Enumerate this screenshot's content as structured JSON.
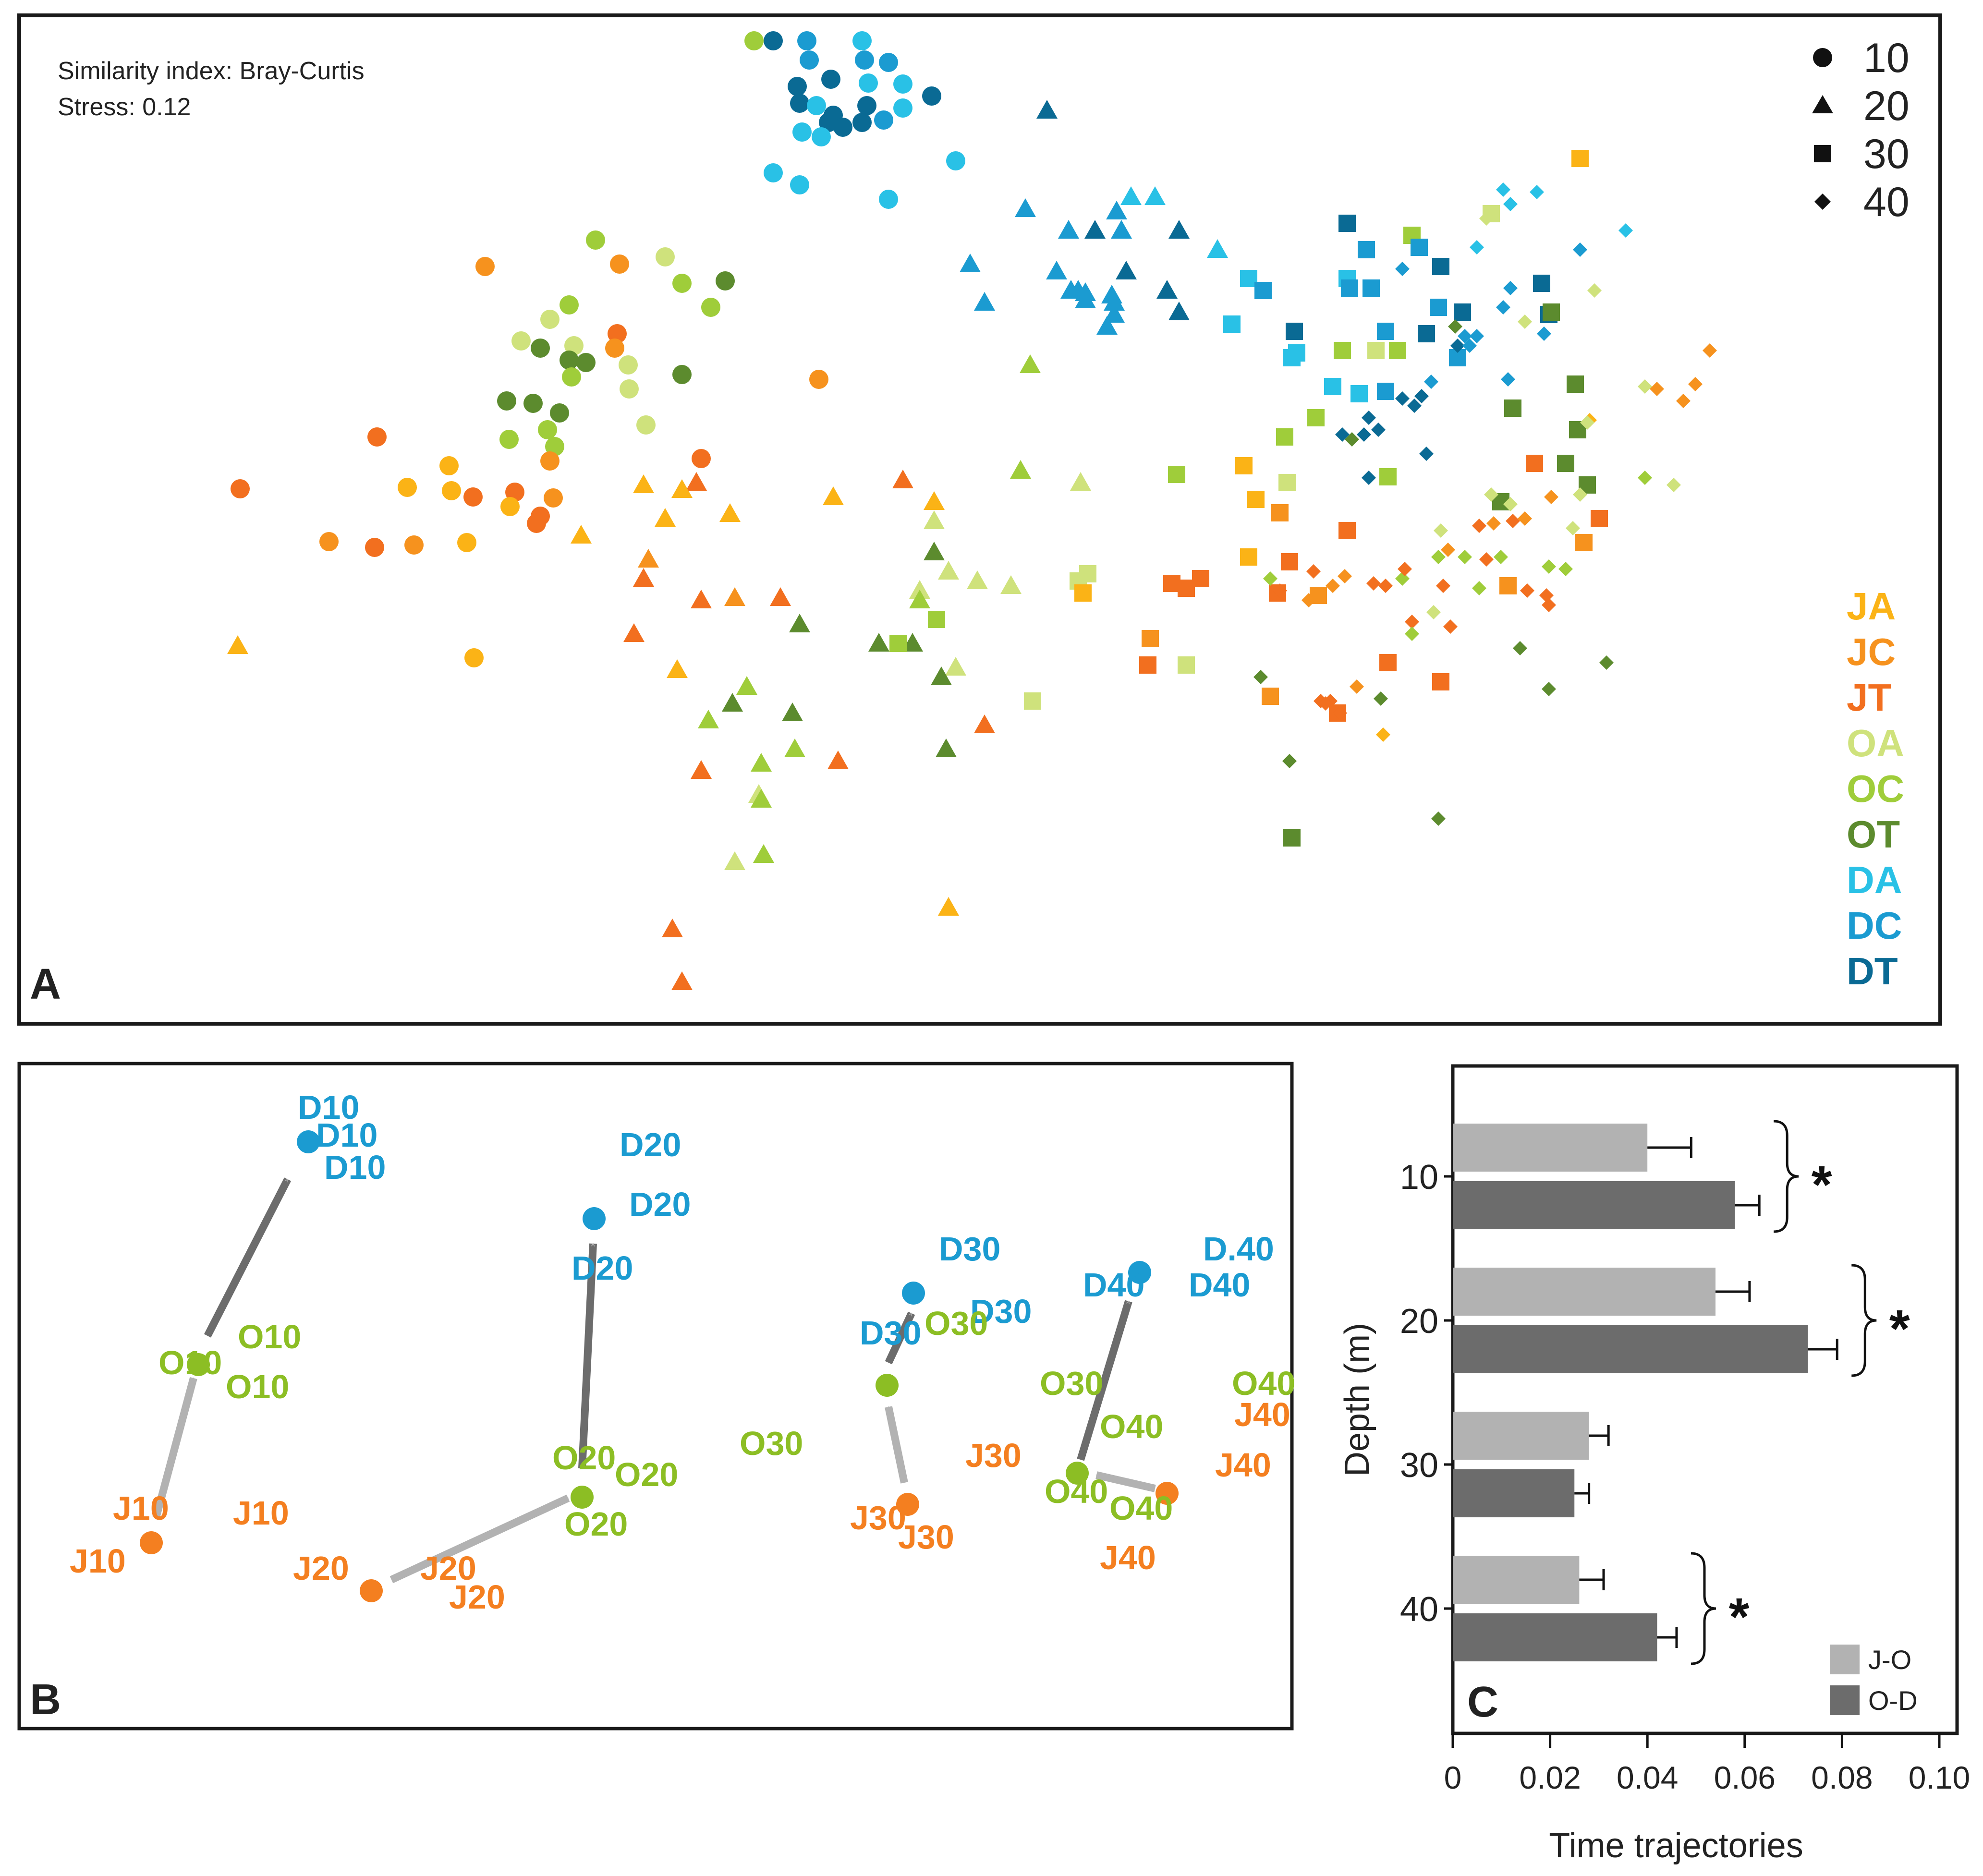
{
  "colors": {
    "JA": "#fbb316",
    "JC": "#f6921e",
    "JT": "#f26f1f",
    "OA": "#cfe27c",
    "OC": "#9fcd3a",
    "OT": "#5c8b2e",
    "DA": "#29c1e6",
    "DC": "#1b9bd1",
    "DT": "#0a6a94",
    "gray_light": "#b2b2b2",
    "gray_dark": "#6c6c6c",
    "B_orange": "#f47f20",
    "B_green": "#8cbe24",
    "B_blue": "#1b9bd1"
  },
  "panelA": {
    "letter": "A",
    "info": [
      "Similarity index: Bray-Curtis",
      "Stress: 0.12"
    ],
    "depth_legend": [
      {
        "label": "10",
        "shape": "circle"
      },
      {
        "label": "20",
        "shape": "triangle"
      },
      {
        "label": "30",
        "shape": "square"
      },
      {
        "label": "40",
        "shape": "diamond"
      }
    ],
    "group_legend": [
      "JA",
      "JC",
      "JT",
      "OA",
      "OC",
      "OT",
      "DA",
      "DC",
      "DT"
    ]
  },
  "panelB": {
    "letter": "B",
    "labels": [
      {
        "text": "D10",
        "c": "blue",
        "x": 620,
        "y": 2330
      },
      {
        "text": "D10",
        "c": "blue",
        "x": 658,
        "y": 2388
      },
      {
        "text": "D10",
        "c": "blue",
        "x": 675,
        "y": 2455
      },
      {
        "text": "D20",
        "c": "blue",
        "x": 1290,
        "y": 2408
      },
      {
        "text": "D20",
        "c": "blue",
        "x": 1310,
        "y": 2532
      },
      {
        "text": "D20",
        "c": "blue",
        "x": 1190,
        "y": 2665
      },
      {
        "text": "D30",
        "c": "blue",
        "x": 1955,
        "y": 2625
      },
      {
        "text": "D30",
        "c": "blue",
        "x": 2020,
        "y": 2755
      },
      {
        "text": "D30",
        "c": "blue",
        "x": 1790,
        "y": 2800
      },
      {
        "text": "D.40",
        "c": "blue",
        "x": 2505,
        "y": 2625
      },
      {
        "text": "D40",
        "c": "blue",
        "x": 2255,
        "y": 2700
      },
      {
        "text": "D40",
        "c": "blue",
        "x": 2475,
        "y": 2700
      },
      {
        "text": "O10",
        "c": "green",
        "x": 495,
        "y": 2808
      },
      {
        "text": "O10",
        "c": "green",
        "x": 330,
        "y": 2862
      },
      {
        "text": "O10",
        "c": "green",
        "x": 470,
        "y": 2912
      },
      {
        "text": "O30",
        "c": "green",
        "x": 1925,
        "y": 2780
      },
      {
        "text": "O20",
        "c": "green",
        "x": 1150,
        "y": 3060
      },
      {
        "text": "O20",
        "c": "green",
        "x": 1280,
        "y": 3095
      },
      {
        "text": "O20",
        "c": "green",
        "x": 1175,
        "y": 3198
      },
      {
        "text": "O30",
        "c": "green",
        "x": 1540,
        "y": 3030
      },
      {
        "text": "O30",
        "c": "green",
        "x": 2165,
        "y": 2905
      },
      {
        "text": "O40",
        "c": "green",
        "x": 2565,
        "y": 2905
      },
      {
        "text": "O40",
        "c": "green",
        "x": 2290,
        "y": 2995
      },
      {
        "text": "O40",
        "c": "green",
        "x": 2175,
        "y": 3130
      },
      {
        "text": "O40",
        "c": "green",
        "x": 2310,
        "y": 3165
      },
      {
        "text": "J10",
        "c": "orange",
        "x": 235,
        "y": 3165
      },
      {
        "text": "J10",
        "c": "orange",
        "x": 485,
        "y": 3175
      },
      {
        "text": "J10",
        "c": "orange",
        "x": 145,
        "y": 3275
      },
      {
        "text": "J20",
        "c": "orange",
        "x": 610,
        "y": 3290
      },
      {
        "text": "J20",
        "c": "orange",
        "x": 875,
        "y": 3290
      },
      {
        "text": "J20",
        "c": "orange",
        "x": 935,
        "y": 3350
      },
      {
        "text": "J30",
        "c": "orange",
        "x": 2010,
        "y": 3055
      },
      {
        "text": "J30",
        "c": "orange",
        "x": 1770,
        "y": 3185
      },
      {
        "text": "J30",
        "c": "orange",
        "x": 1870,
        "y": 3225
      },
      {
        "text": "J40",
        "c": "orange",
        "x": 2570,
        "y": 2970
      },
      {
        "text": "J40",
        "c": "orange",
        "x": 2530,
        "y": 3075
      },
      {
        "text": "J40",
        "c": "orange",
        "x": 2290,
        "y": 3268
      }
    ]
  },
  "chart_data": {
    "type": "bar",
    "orientation": "horizontal",
    "panel_letter": "C",
    "categories": [
      "10",
      "20",
      "30",
      "40"
    ],
    "series": [
      {
        "name": "J-O",
        "values": [
          0.04,
          0.054,
          0.028,
          0.026
        ],
        "errors": [
          0.009,
          0.007,
          0.004,
          0.005
        ]
      },
      {
        "name": "O-D",
        "values": [
          0.058,
          0.073,
          0.025,
          0.042
        ],
        "errors": [
          0.005,
          0.006,
          0.003,
          0.004
        ]
      }
    ],
    "significance": [
      "*",
      "*",
      "",
      "*"
    ],
    "xlabel": "Time trajectories",
    "ylabel": "Depth (m)",
    "xlim": [
      0,
      0.1
    ],
    "xticks": [
      "0",
      "0.02",
      "0.04",
      "0.06",
      "0.08",
      "0.10"
    ],
    "legend_position": "bottom-right"
  }
}
